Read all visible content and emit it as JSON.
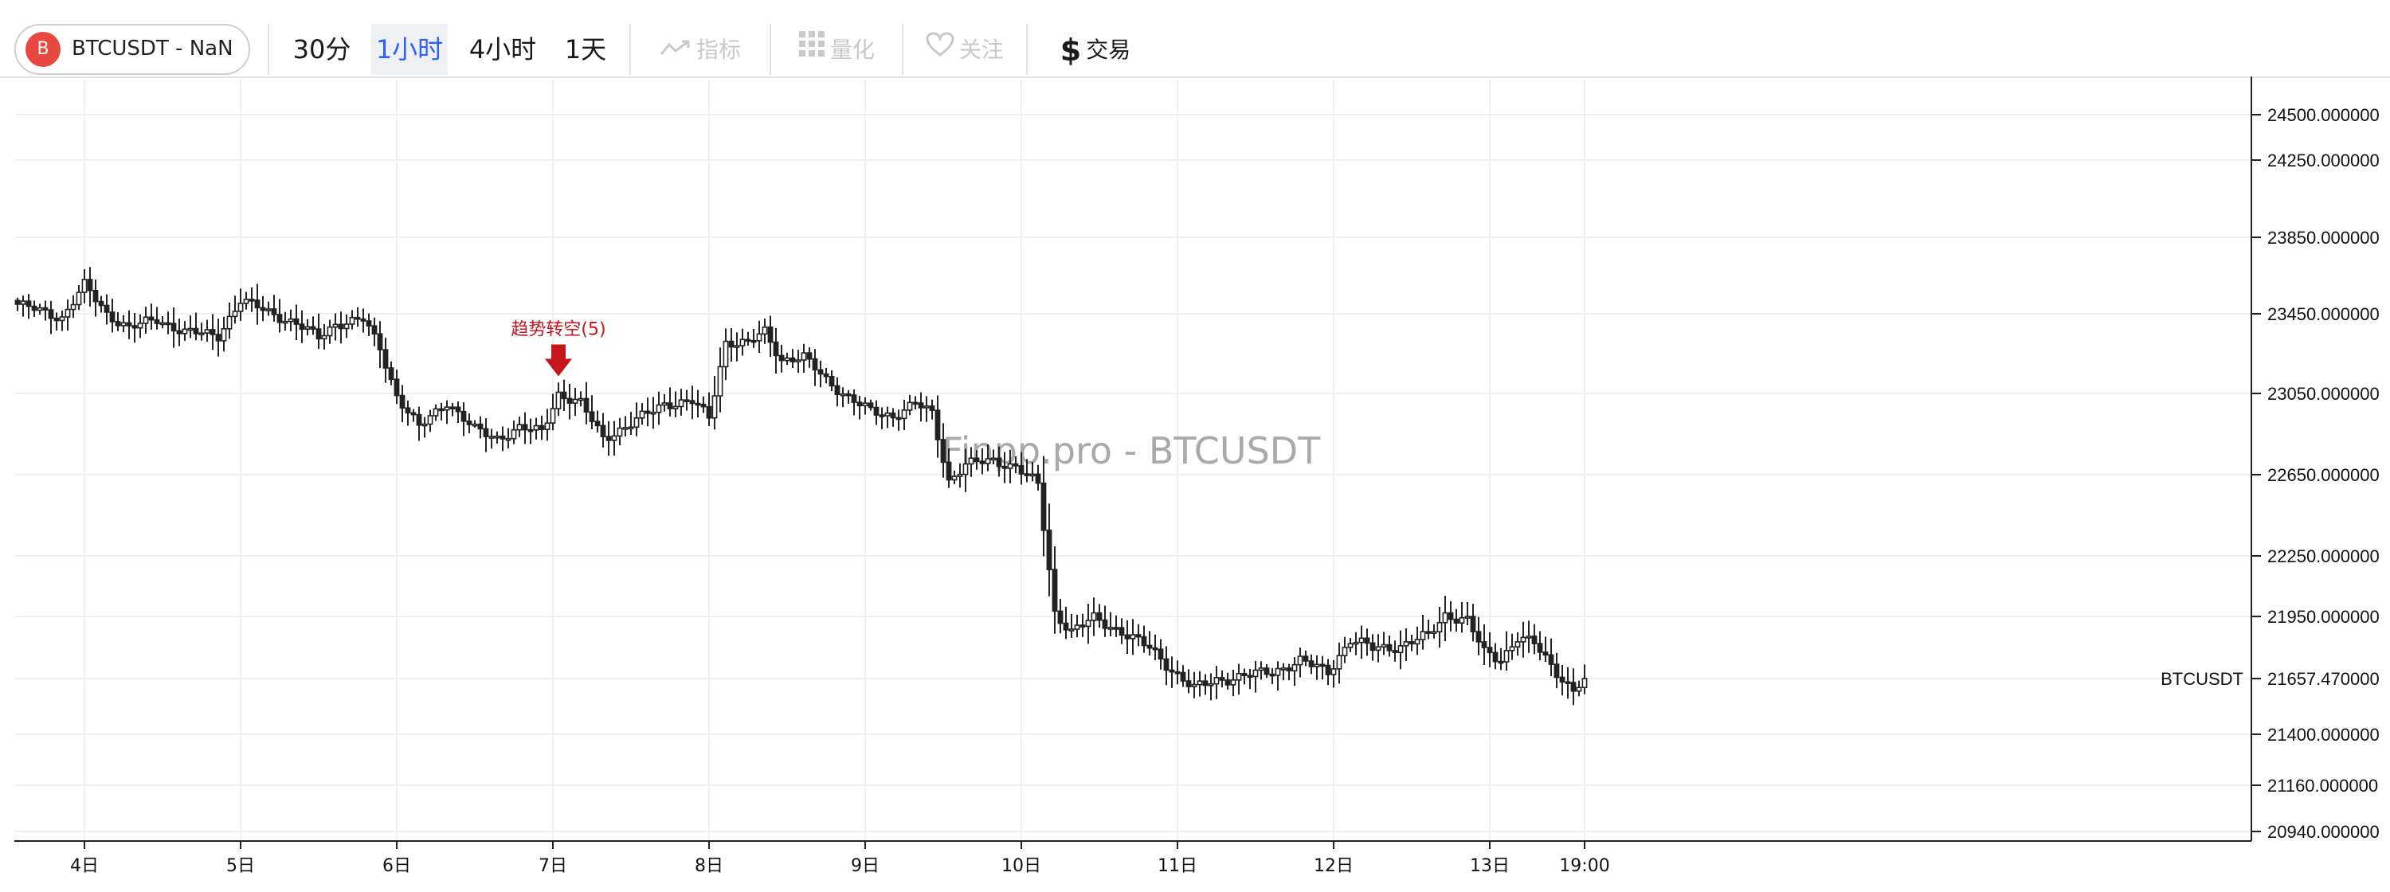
{
  "toolbar": {
    "symbol_badge": "B",
    "symbol_label": "BTCUSDT - NaN",
    "intervals": [
      "30分",
      "1小时",
      "4小时",
      "1天"
    ],
    "active_interval": "1小时",
    "indicator_label": "指标",
    "quant_label": "量化",
    "follow_label": "关注",
    "trade_label": "交易"
  },
  "chart_data": {
    "type": "candlestick",
    "watermark": "Finpp.pro - BTCUSDT",
    "price_ticks": [
      24500,
      24250,
      23850,
      23450,
      23050,
      22650,
      22250,
      21950,
      21657.47,
      21400,
      21160,
      20940
    ],
    "price_tick_labels": [
      "24500.000000",
      "24250.000000",
      "23850.000000",
      "23450.000000",
      "23050.000000",
      "22650.000000",
      "22250.000000",
      "21950.000000",
      "21657.470000",
      "21400.000000",
      "21160.000000",
      "20940.000000"
    ],
    "x_ticks": [
      "4日",
      "5日",
      "6日",
      "7日",
      "8日",
      "9日",
      "10日",
      "11日",
      "12日",
      "13日",
      "19:00"
    ],
    "last_price": {
      "symbol": "BTCUSDT",
      "value": 21657.47,
      "label": "21657.470000"
    },
    "annotations": [
      {
        "text": "趋势转空(5)",
        "x_index": 97,
        "price": 23080,
        "color": "#c4161c"
      }
    ],
    "candle_color": "#222222",
    "grid": true,
    "key_closes": [
      [
        0,
        23500
      ],
      [
        8,
        23430
      ],
      [
        12,
        23600
      ],
      [
        16,
        23450
      ],
      [
        20,
        23380
      ],
      [
        25,
        23420
      ],
      [
        30,
        23360
      ],
      [
        36,
        23340
      ],
      [
        40,
        23520
      ],
      [
        45,
        23460
      ],
      [
        50,
        23400
      ],
      [
        54,
        23330
      ],
      [
        57,
        23400
      ],
      [
        62,
        23420
      ],
      [
        65,
        23280
      ],
      [
        68,
        23040
      ],
      [
        72,
        22880
      ],
      [
        77,
        23010
      ],
      [
        82,
        22870
      ],
      [
        86,
        22830
      ],
      [
        90,
        22880
      ],
      [
        94,
        22860
      ],
      [
        97,
        23050
      ],
      [
        101,
        23000
      ],
      [
        105,
        22830
      ],
      [
        110,
        22900
      ],
      [
        116,
        23000
      ],
      [
        121,
        23010
      ],
      [
        124,
        22930
      ],
      [
        127,
        23310
      ],
      [
        131,
        23300
      ],
      [
        134,
        23360
      ],
      [
        137,
        23220
      ],
      [
        141,
        23230
      ],
      [
        145,
        23120
      ],
      [
        149,
        23030
      ],
      [
        153,
        22960
      ],
      [
        157,
        22940
      ],
      [
        161,
        23000
      ],
      [
        164,
        22950
      ],
      [
        167,
        22620
      ],
      [
        170,
        22700
      ],
      [
        175,
        22720
      ],
      [
        179,
        22690
      ],
      [
        183,
        22600
      ],
      [
        186,
        21970
      ],
      [
        189,
        21880
      ],
      [
        193,
        21940
      ],
      [
        198,
        21880
      ],
      [
        203,
        21800
      ],
      [
        207,
        21700
      ],
      [
        211,
        21610
      ],
      [
        215,
        21650
      ],
      [
        220,
        21670
      ],
      [
        225,
        21690
      ],
      [
        230,
        21740
      ],
      [
        235,
        21690
      ],
      [
        239,
        21840
      ],
      [
        243,
        21800
      ],
      [
        248,
        21810
      ],
      [
        253,
        21860
      ],
      [
        256,
        21960
      ],
      [
        260,
        21930
      ],
      [
        263,
        21780
      ],
      [
        266,
        21750
      ],
      [
        269,
        21850
      ],
      [
        272,
        21820
      ],
      [
        275,
        21720
      ],
      [
        279,
        21600
      ],
      [
        281,
        21657.47
      ]
    ],
    "slot_ticks": [
      12,
      40,
      68,
      96,
      124,
      152,
      180,
      208,
      236,
      264,
      281
    ]
  }
}
